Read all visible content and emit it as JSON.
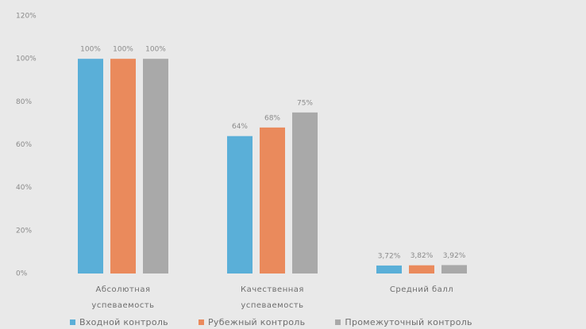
{
  "chart_data": {
    "type": "bar",
    "categories": [
      "Абсолютная успеваемость",
      "Качественная успеваемость",
      "Средний балл"
    ],
    "series": [
      {
        "name": "Входной контроль",
        "color": "#5aafd8",
        "values": [
          100,
          64,
          3.72
        ],
        "value_labels": [
          "100%",
          "64%",
          "3,72%"
        ]
      },
      {
        "name": "Рубежный контроль",
        "color": "#ea8a5c",
        "values": [
          100,
          68,
          3.82
        ],
        "value_labels": [
          "100%",
          "68%",
          "3,82%"
        ]
      },
      {
        "name": "Промежуточный контроль",
        "color": "#a9a9a9",
        "values": [
          100,
          75,
          3.92
        ],
        "value_labels": [
          "100%",
          "75%",
          "3,92%"
        ]
      }
    ],
    "ylim": [
      0,
      120
    ],
    "yticks": [
      {
        "value": 0,
        "label": "0%"
      },
      {
        "value": 20,
        "label": "20%"
      },
      {
        "value": 40,
        "label": "40%"
      },
      {
        "value": 60,
        "label": "60%"
      },
      {
        "value": 80,
        "label": "80%"
      },
      {
        "value": 100,
        "label": "100%"
      },
      {
        "value": 120,
        "label": "120%"
      }
    ],
    "grid": false
  }
}
